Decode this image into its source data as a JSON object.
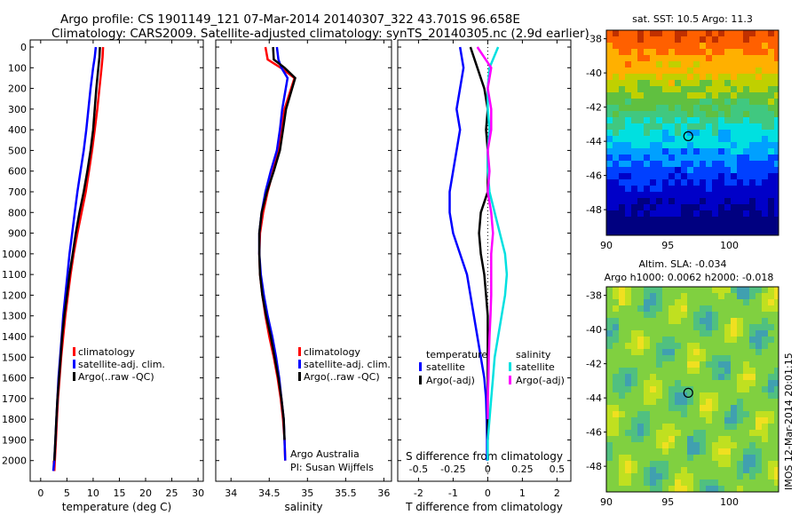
{
  "header": {
    "line1": "Argo profile: CS 1901149_121 07-Mar-2014 20140307_322 43.701S 96.658E",
    "line2": "Climatology: CARS2009. Satellite-adjusted climatology: synTS_20140305.nc (2.9d earlier)"
  },
  "colors": {
    "climatology": "#ff0000",
    "satellite": "#0000ff",
    "argo": "#000000",
    "sat_diff_salinity": "#00e0e0",
    "argo_diff_salinity": "#ff00ff"
  },
  "chart_data": [
    {
      "type": "line",
      "id": "temperature",
      "xlabel": "temperature (deg C)",
      "xlim": [
        -2,
        31
      ],
      "xticks": [
        0,
        5,
        10,
        15,
        20,
        25,
        30
      ],
      "ylim": [
        2100,
        0
      ],
      "yticks": [
        0,
        100,
        200,
        300,
        400,
        500,
        600,
        700,
        800,
        900,
        1000,
        1100,
        1200,
        1300,
        1400,
        1500,
        1600,
        1700,
        1800,
        1900,
        2000
      ],
      "legend_position": "lower-center",
      "legend": [
        "climatology",
        "satellite-adj. clim.",
        "Argo(..raw -QC)"
      ],
      "series": [
        {
          "name": "climatology",
          "color": "#ff0000",
          "x": [
            11.9,
            11.8,
            11.6,
            11.2,
            10.8,
            10.3,
            9.8,
            9.2,
            8.6,
            7.8,
            7.0,
            6.3,
            5.7,
            5.2,
            4.7,
            4.3,
            3.9,
            3.6,
            3.3,
            3.1,
            2.9,
            2.7,
            2.6,
            2.5,
            2.5
          ],
          "y": [
            0,
            50,
            100,
            200,
            300,
            400,
            500,
            600,
            700,
            800,
            900,
            1000,
            1100,
            1200,
            1300,
            1400,
            1500,
            1600,
            1700,
            1800,
            1900,
            2000,
            2050,
            2000,
            2050
          ]
        },
        {
          "name": "satellite-adj. clim.",
          "color": "#0000ff",
          "x": [
            10.5,
            10.3,
            10.0,
            9.5,
            9.1,
            8.7,
            8.2,
            7.6,
            7.0,
            6.5,
            6.0,
            5.5,
            5.1,
            4.7,
            4.3,
            4.0,
            3.7,
            3.4,
            3.2,
            3.0,
            2.8,
            2.6,
            2.4
          ],
          "y": [
            0,
            50,
            100,
            200,
            300,
            400,
            500,
            600,
            700,
            800,
            900,
            1000,
            1100,
            1200,
            1300,
            1400,
            1500,
            1600,
            1700,
            1800,
            1900,
            2000,
            2050
          ]
        },
        {
          "name": "Argo(..raw -QC)",
          "color": "#000000",
          "x": [
            11.3,
            11.2,
            11.0,
            10.6,
            10.3,
            10.0,
            9.5,
            8.9,
            8.2,
            7.4,
            6.7,
            6.1,
            5.5,
            5.0,
            4.5,
            4.1,
            3.8,
            3.5,
            3.2,
            3.0,
            2.8,
            2.6
          ],
          "y": [
            0,
            50,
            100,
            200,
            300,
            400,
            500,
            600,
            700,
            800,
            900,
            1000,
            1100,
            1200,
            1300,
            1400,
            1500,
            1600,
            1700,
            1800,
            1900,
            2000
          ]
        }
      ]
    },
    {
      "type": "line",
      "id": "salinity",
      "xlabel": "salinity",
      "xlim": [
        33.8,
        36.1
      ],
      "xticks": [
        34,
        34.5,
        35,
        35.5,
        36
      ],
      "ylim": [
        2100,
        0
      ],
      "yticks": [
        0,
        100,
        200,
        300,
        400,
        500,
        600,
        700,
        800,
        900,
        1000,
        1100,
        1200,
        1300,
        1400,
        1500,
        1600,
        1700,
        1800,
        1900,
        2000
      ],
      "legend_position": "lower-center",
      "legend": [
        "climatology",
        "satellite-adj. clim.",
        "Argo(..raw -QC)"
      ],
      "annotation": [
        "Argo Australia",
        "PI: Susan Wijffels"
      ],
      "series": [
        {
          "name": "climatology",
          "color": "#ff0000",
          "x": [
            34.45,
            34.48,
            34.65,
            34.83,
            34.7,
            34.66,
            34.62,
            34.55,
            34.48,
            34.42,
            34.38,
            34.37,
            34.38,
            34.41,
            34.45,
            34.5,
            34.56,
            34.61,
            34.65,
            34.68,
            34.7,
            34.71
          ],
          "y": [
            0,
            60,
            100,
            150,
            300,
            400,
            500,
            600,
            700,
            800,
            900,
            1000,
            1100,
            1200,
            1300,
            1400,
            1500,
            1600,
            1700,
            1800,
            1900,
            2000
          ]
        },
        {
          "name": "satellite-adj. clim.",
          "color": "#0000ff",
          "x": [
            34.6,
            34.62,
            34.66,
            34.74,
            34.67,
            34.64,
            34.6,
            34.52,
            34.45,
            34.4,
            34.37,
            34.37,
            34.39,
            34.43,
            34.48,
            34.54,
            34.59,
            34.63,
            34.66,
            34.69,
            34.7,
            34.71
          ],
          "y": [
            0,
            60,
            100,
            150,
            300,
            400,
            500,
            600,
            700,
            800,
            900,
            1000,
            1100,
            1200,
            1300,
            1400,
            1500,
            1600,
            1700,
            1800,
            1900,
            2000
          ]
        },
        {
          "name": "Argo(..raw -QC)",
          "color": "#000000",
          "x": [
            34.55,
            34.56,
            34.7,
            34.84,
            34.72,
            34.68,
            34.64,
            34.56,
            34.47,
            34.4,
            34.37,
            34.37,
            34.38,
            34.41,
            34.46,
            34.52,
            34.57,
            34.62,
            34.66,
            34.69,
            34.7
          ],
          "y": [
            0,
            60,
            100,
            150,
            300,
            400,
            500,
            600,
            700,
            800,
            900,
            1000,
            1100,
            1200,
            1300,
            1400,
            1500,
            1600,
            1700,
            1800,
            1900
          ]
        }
      ]
    },
    {
      "type": "line",
      "id": "difference",
      "xlabel": "T difference from climatology",
      "xlabel_top": "S difference from climatology",
      "xlim": [
        -2.6,
        2.4
      ],
      "xticks": [
        -2,
        -1,
        0,
        1,
        2
      ],
      "xticks_top": [
        -0.5,
        -0.25,
        0,
        0.25,
        0.5
      ],
      "xtick_labels_top": [
        "-0.5",
        "-0.25",
        "0",
        "0.25",
        "0.5"
      ],
      "ylim": [
        2100,
        0
      ],
      "legend_position": "lower-center",
      "legend_groups": [
        {
          "title": "temperature",
          "entries": [
            "satellite",
            "Argo(-adj)"
          ]
        },
        {
          "title": "salinity",
          "entries": [
            "satellite",
            "Argo(-adj)"
          ]
        }
      ],
      "series": [
        {
          "name": "temperature satellite",
          "color": "#0000ff",
          "x": [
            -0.8,
            -0.7,
            -0.8,
            -0.9,
            -0.8,
            -0.9,
            -1.0,
            -1.1,
            -1.1,
            -1.0,
            -0.8,
            -0.6,
            -0.5,
            -0.4,
            -0.3,
            -0.2,
            -0.1,
            -0.05,
            -0.03,
            -0.02,
            -0.02
          ],
          "y": [
            0,
            100,
            200,
            300,
            400,
            500,
            600,
            700,
            800,
            900,
            1000,
            1100,
            1200,
            1300,
            1400,
            1500,
            1600,
            1700,
            1800,
            1900,
            2000
          ]
        },
        {
          "name": "temperature Argo(-adj)",
          "color": "#000000",
          "x": [
            -0.5,
            -0.3,
            -0.1,
            0.0,
            -0.05,
            0.0,
            0.0,
            0.0,
            -0.2,
            -0.25,
            -0.2,
            -0.1,
            -0.05,
            0.0,
            0.0,
            0.0,
            0.0,
            0.0,
            0.0,
            0.0
          ],
          "y": [
            0,
            100,
            200,
            300,
            400,
            500,
            600,
            700,
            800,
            900,
            1000,
            1100,
            1200,
            1300,
            1400,
            1500,
            1600,
            1700,
            1800,
            1900
          ]
        },
        {
          "name": "salinity satellite",
          "color": "#00e0e0",
          "x": [
            0.3,
            0.05,
            0.0,
            0.0,
            0.05,
            0.0,
            0.0,
            0.05,
            0.2,
            0.35,
            0.5,
            0.55,
            0.5,
            0.4,
            0.3,
            0.2,
            0.15,
            0.1,
            0.05,
            0.0,
            0.0
          ],
          "y": [
            0,
            100,
            200,
            300,
            400,
            500,
            600,
            700,
            800,
            900,
            1000,
            1100,
            1200,
            1300,
            1400,
            1500,
            1600,
            1700,
            1800,
            1900,
            2000
          ]
        },
        {
          "name": "salinity Argo(-adj)",
          "color": "#ff00ff",
          "x": [
            -0.3,
            0.1,
            0.0,
            0.1,
            0.1,
            0.0,
            0.05,
            0.0,
            0.1,
            0.15,
            0.1,
            0.1,
            0.1,
            0.08,
            0.05,
            0.03,
            0.02,
            0.0,
            0.0
          ],
          "y": [
            0,
            100,
            200,
            300,
            400,
            500,
            600,
            700,
            800,
            900,
            1000,
            1100,
            1200,
            1300,
            1400,
            1500,
            1600,
            1700,
            1800
          ]
        }
      ]
    },
    {
      "type": "heatmap",
      "id": "sst_map",
      "title": "sat. SST: 10.5  Argo: 11.3",
      "xlim": [
        90,
        104
      ],
      "ylim": [
        -49.5,
        -37.5
      ],
      "xticks": [
        90,
        95,
        100
      ],
      "yticks": [
        -38,
        -40,
        -42,
        -44,
        -46,
        -48
      ],
      "marker": {
        "lon": 96.658,
        "lat": -43.701
      }
    },
    {
      "type": "heatmap",
      "id": "sla_map",
      "title": "Altim. SLA: -0.034",
      "subtitle": "Argo h1000: 0.0062 h2000: -0.018",
      "xlim": [
        90,
        104
      ],
      "ylim": [
        -49.5,
        -37.5
      ],
      "xticks": [
        90,
        95,
        100
      ],
      "yticks": [
        -38,
        -40,
        -42,
        -44,
        -46,
        -48
      ],
      "marker": {
        "lon": 96.658,
        "lat": -43.701
      }
    }
  ],
  "footer_stamp": "IMOS 12-Mar-2014 20:01:15"
}
